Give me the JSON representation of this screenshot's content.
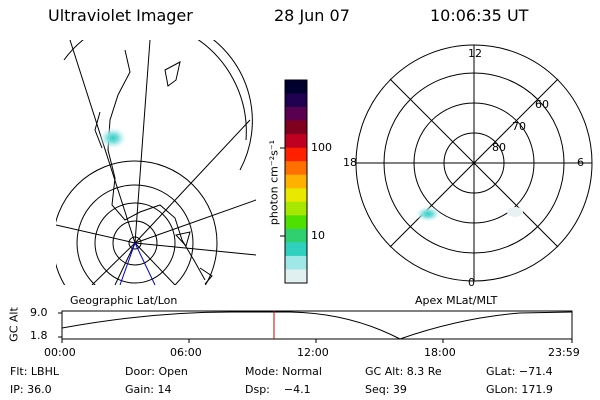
{
  "header": {
    "instrument": "Ultraviolet Imager",
    "date": "28 Jun 07",
    "time": "10:06:35 UT"
  },
  "geo_panel": {
    "label": "Geographic Lat/Lon"
  },
  "apex_panel": {
    "label": "Apex MLat/MLT",
    "mlt_labels": [
      "12",
      "18",
      "6",
      "0"
    ],
    "lat_labels": [
      "60",
      "70",
      "80"
    ]
  },
  "colorbar": {
    "unit": "photon cm⁻²s⁻¹",
    "ticks": [
      "100",
      "10"
    ],
    "colors": [
      "#000030",
      "#200050",
      "#5a0050",
      "#800020",
      "#c00020",
      "#ff2000",
      "#ff7000",
      "#ffb000",
      "#e8e800",
      "#a8e800",
      "#50e000",
      "#30d070",
      "#30d0c0",
      "#a0e8e8",
      "#e0f0f0"
    ]
  },
  "altitude_plot": {
    "axis_label": "GC Alt",
    "y_ticks": [
      "9.0",
      "1.8"
    ],
    "x_ticks": [
      "00:00",
      "06:00",
      "12:00",
      "18:00",
      "23:59"
    ],
    "marker_color": "#cc0000"
  },
  "info": {
    "flt": "Flt: LBHL",
    "door": "Door: Open",
    "mode": "Mode: Normal",
    "gc_alt": "GC Alt: 8.3 Re",
    "glat": "GLat: −71.4",
    "ip": "IP: 36.0",
    "gain": "Gain: 14",
    "dsp": "Dsp:    −4.1",
    "seq": "Seq: 39",
    "glon": "GLon: 171.9"
  }
}
